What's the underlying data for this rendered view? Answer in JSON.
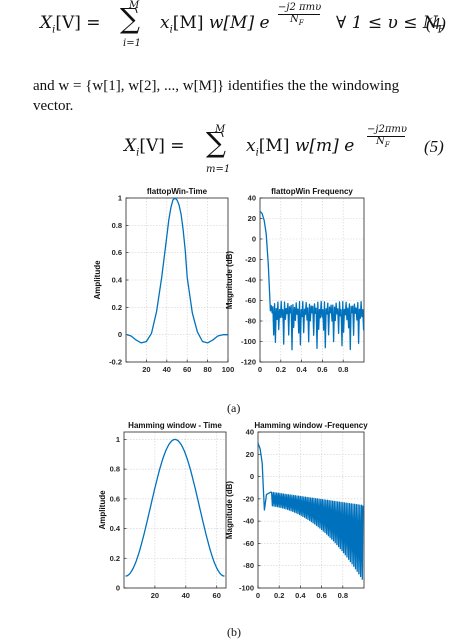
{
  "equation4": {
    "lhs": "X",
    "lhs_sub": "i",
    "lhs_arg": "[V]",
    "sum_upper": "M",
    "sum_lower": "i=1",
    "term1": "x",
    "term1_sub": "i",
    "term1_arg": "[M]",
    "term2": "w[M]",
    "exp_base": "e",
    "exp_num": "−j2 πmυ",
    "exp_den": "N",
    "exp_den_sub": "F",
    "condition": "∀ 1 ≤ υ ≤ N",
    "condition_sub": "F",
    "number": "(4)"
  },
  "paragraph": {
    "line1": "and w = {w[1], w[2], ..., w[M]} identifies the the windowing",
    "line2": "vector."
  },
  "equation5": {
    "lhs": "X",
    "lhs_sub": "i",
    "lhs_arg": "[V]",
    "sum_upper": "M",
    "sum_lower": "m=1",
    "term1": "x",
    "term1_sub": "i",
    "term1_arg": "[M]",
    "term2": "w[m]",
    "exp_base": "e",
    "exp_num": "−j2πmυ",
    "exp_den": "N",
    "exp_den_sub": "F",
    "number": "(5)"
  },
  "figure_a_caption": "(a)",
  "figure_b_caption": "(b)",
  "chart_data": [
    {
      "type": "line",
      "title": "flattopWin-Time",
      "xlabel": "",
      "ylabel": "Amplitude",
      "xlim": [
        0,
        100
      ],
      "ylim": [
        -0.2,
        1
      ],
      "xticks": [
        20,
        40,
        60,
        80,
        100
      ],
      "yticks": [
        -0.2,
        0,
        0.2,
        0.4,
        0.6,
        0.8,
        1
      ],
      "xtick_labels": [
        "20",
        "40",
        "60",
        "80",
        "100"
      ],
      "ytick_labels": [
        "-0.2",
        "0",
        "0.2",
        "0.4",
        "0.6",
        "0.8",
        "1"
      ],
      "grid": true,
      "color": "#0072bd",
      "series": [
        {
          "x": [
            1,
            5,
            10,
            15,
            20,
            25,
            30,
            35,
            40,
            42,
            44,
            46,
            48,
            50,
            52,
            54,
            56,
            58,
            60,
            65,
            70,
            75,
            80,
            85,
            90,
            95,
            100
          ],
          "y": [
            0,
            -0.01,
            -0.04,
            -0.06,
            -0.05,
            0.01,
            0.17,
            0.42,
            0.72,
            0.84,
            0.93,
            0.985,
            1.0,
            0.985,
            0.95,
            0.88,
            0.77,
            0.62,
            0.42,
            0.16,
            0.02,
            -0.05,
            -0.06,
            -0.04,
            -0.01,
            0.0,
            0.0
          ]
        }
      ]
    },
    {
      "type": "line",
      "title": "flattopWin Frequency",
      "xlabel": "",
      "ylabel": "Magnitude (dB)",
      "xlim": [
        0,
        1
      ],
      "ylim": [
        -120,
        40
      ],
      "xticks": [
        0,
        0.2,
        0.4,
        0.6,
        0.8
      ],
      "yticks": [
        -120,
        -100,
        -80,
        -60,
        -40,
        -20,
        0,
        20,
        40
      ],
      "xtick_labels": [
        "0",
        "0.2",
        "0.4",
        "0.6",
        "0.8"
      ],
      "ytick_labels": [
        "-120",
        "-100",
        "-80",
        "-60",
        "-40",
        "-20",
        "0",
        "20",
        "40"
      ],
      "grid": true,
      "color": "#0072bd",
      "series": [
        {
          "x": [
            0,
            0.02,
            0.04,
            0.06,
            0.08,
            0.1
          ],
          "y": [
            27,
            25,
            18,
            5,
            -25,
            -70
          ],
          "note": "main lobe then sidelobe floor about -65 dB to -75 dB with nulls to about -105 dB up to x=1"
        }
      ]
    },
    {
      "type": "line",
      "title": "Hamming window - Time",
      "xlabel": "",
      "ylabel": "Amplitude",
      "xlim": [
        0,
        66
      ],
      "ylim": [
        0,
        1.05
      ],
      "xticks": [
        20,
        40,
        60
      ],
      "yticks": [
        0,
        0.2,
        0.4,
        0.6,
        0.8,
        1
      ],
      "xtick_labels": [
        "20",
        "40",
        "60"
      ],
      "ytick_labels": [
        "0",
        "0.2",
        "0.4",
        "0.6",
        "0.8",
        "1"
      ],
      "grid": true,
      "color": "#0072bd",
      "series": [
        {
          "function": "0.54 - 0.46 cos(2π(n-1)/(64))",
          "n_range": [
            1,
            65
          ]
        }
      ]
    },
    {
      "type": "line",
      "title": "Hamming window -Frequency",
      "xlabel": "",
      "ylabel": "Magnitude (dB)",
      "xlim": [
        0,
        1
      ],
      "ylim": [
        -100,
        40
      ],
      "xticks": [
        0,
        0.2,
        0.4,
        0.6,
        0.8
      ],
      "yticks": [
        -100,
        -80,
        -60,
        -40,
        -20,
        0,
        20,
        40
      ],
      "xtick_labels": [
        "0",
        "0.2",
        "0.4",
        "0.6",
        "0.8"
      ],
      "ytick_labels": [
        "-100",
        "-80",
        "-60",
        "-40",
        "-20",
        "0",
        "20",
        "40"
      ],
      "grid": true,
      "color": "#0072bd",
      "series": [
        {
          "x": [
            0,
            0.02,
            0.04,
            0.05,
            0.06,
            0.08,
            0.12
          ],
          "y": [
            30,
            25,
            12,
            -10,
            -30,
            -16,
            -14
          ],
          "note": "sidelobe envelope falls from about -13 dB to about -25 dB, nulls deepening to about -85 dB near x=0.95"
        }
      ]
    }
  ]
}
